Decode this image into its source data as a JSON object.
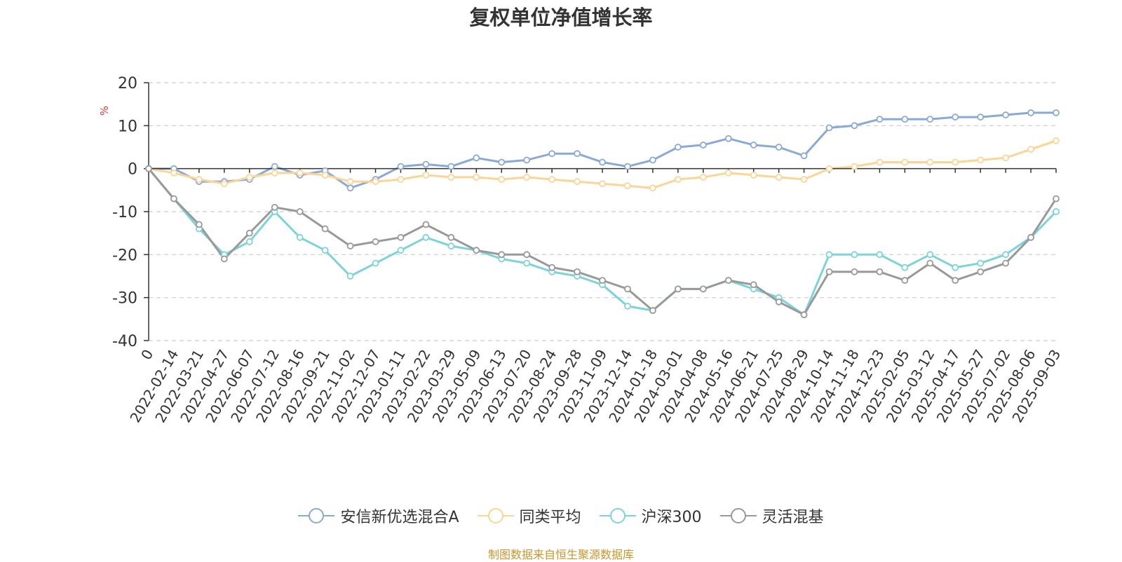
{
  "chart_data": {
    "type": "line",
    "title": "复权单位净值增长率",
    "ylabel": "%",
    "xlabel": "",
    "ylim": [
      -40,
      20
    ],
    "yticks": [
      20,
      10,
      0,
      -10,
      -20,
      -30,
      -40
    ],
    "grid": true,
    "legend_position": "bottom",
    "x_tick_labels": [
      "0",
      "2022-02-14",
      "2022-03-21",
      "2022-04-27",
      "2022-06-07",
      "2022-07-12",
      "2022-08-16",
      "2022-09-21",
      "2022-11-02",
      "2022-12-07",
      "2023-01-11",
      "2023-02-22",
      "2023-03-29",
      "2023-05-09",
      "2023-06-13",
      "2023-07-20",
      "2023-08-24",
      "2023-09-28",
      "2023-11-09",
      "2023-12-14",
      "2024-01-18",
      "2024-03-01",
      "2024-04-08",
      "2024-05-16",
      "2024-06-21",
      "2024-07-25",
      "2024-08-29",
      "2024-10-14",
      "2024-11-18",
      "2024-12-23",
      "2025-02-05",
      "2025-03-12",
      "2025-04-17",
      "2025-05-27",
      "2025-07-02",
      "2025-08-06",
      "2025-09-03"
    ],
    "series": [
      {
        "name": "安信新优选混合A",
        "color": "#8aa9d6",
        "values": [
          0,
          0,
          -3,
          -3,
          -2.5,
          0.5,
          -1.5,
          -0.5,
          -4.5,
          -2.5,
          0.5,
          1,
          0.5,
          2.5,
          1.5,
          2,
          3.5,
          3.5,
          1.5,
          0.5,
          2,
          5,
          5.5,
          7,
          5.5,
          5,
          3,
          9.5,
          10,
          11.5,
          11.5,
          11.5,
          12,
          12,
          12.5,
          13,
          13
        ]
      },
      {
        "name": "同类平均",
        "color": "#fbd596",
        "values": [
          0,
          -1,
          -2.5,
          -3.5,
          -2,
          -1,
          -1,
          -1.5,
          -3,
          -3,
          -2.5,
          -1.5,
          -2,
          -2,
          -2.5,
          -2,
          -2.5,
          -3,
          -3.5,
          -4,
          -4.5,
          -2.5,
          -2,
          -1,
          -1.5,
          -2,
          -2.5,
          0,
          0.5,
          1.5,
          1.5,
          1.5,
          1.5,
          2,
          2.5,
          4.5,
          6.5
        ]
      },
      {
        "name": "沪深300",
        "color": "#7dd3da",
        "values": [
          0,
          -7,
          -14,
          -20,
          -17,
          -10,
          -16,
          -19,
          -25,
          -22,
          -19,
          -16,
          -18,
          -19,
          -21,
          -22,
          -24,
          -25,
          -27,
          -32,
          -33,
          -28,
          -28,
          -26,
          -28,
          -30,
          -34,
          -20,
          -20,
          -20,
          -23,
          -20,
          -23,
          -22,
          -20,
          -16,
          -10
        ]
      },
      {
        "name": "灵活混基",
        "color": "#999999",
        "values": [
          0,
          -7,
          -13,
          -21,
          -15,
          -9,
          -10,
          -14,
          -18,
          -17,
          -16,
          -13,
          -16,
          -19,
          -20,
          -20,
          -23,
          -24,
          -26,
          -28,
          -33,
          -28,
          -28,
          -26,
          -27,
          -31,
          -34,
          -24,
          -24,
          -24,
          -26,
          -22,
          -26,
          -24,
          -22,
          -16,
          -7
        ]
      }
    ]
  },
  "footer": "制图数据来自恒生聚源数据库"
}
